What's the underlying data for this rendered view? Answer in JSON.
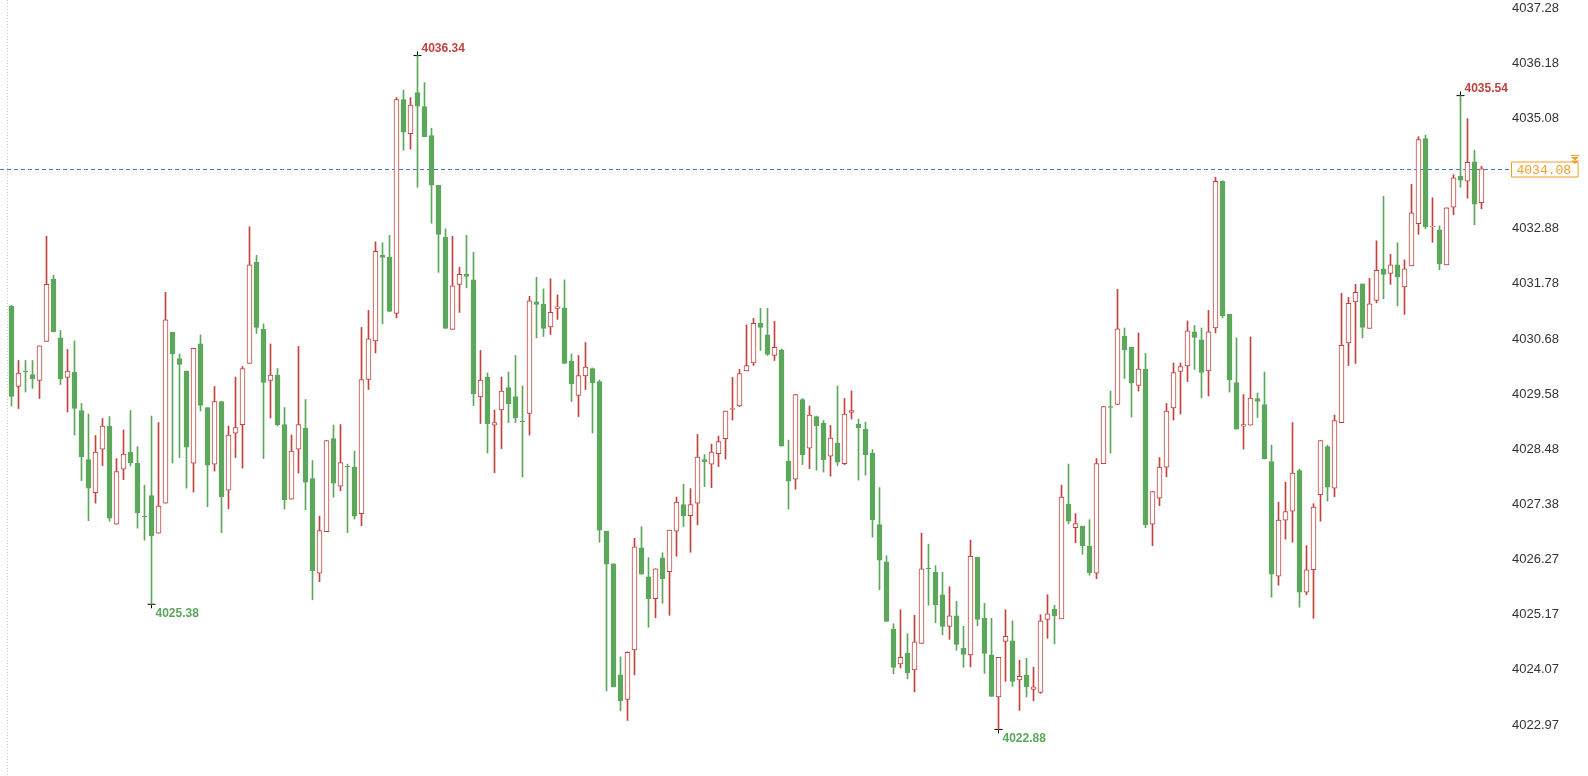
{
  "chart_data": {
    "type": "candlestick",
    "categories": [
      null,
      null,
      null,
      null,
      null,
      null,
      null,
      null,
      null,
      null,
      null,
      null,
      null,
      null,
      null,
      null,
      null,
      null,
      null,
      null,
      null,
      null,
      null,
      null,
      null,
      null,
      null,
      null,
      null,
      null,
      null,
      null,
      null,
      null,
      null,
      null,
      null,
      null,
      null,
      null,
      null,
      null,
      null,
      null,
      null,
      null,
      null,
      null,
      null,
      null,
      null,
      null,
      null,
      null,
      null,
      null,
      null,
      null,
      null,
      null,
      null,
      null,
      null,
      null,
      null,
      null,
      null,
      null,
      null,
      null,
      null,
      null,
      null,
      null,
      null,
      null,
      null,
      null,
      null,
      null,
      null,
      null,
      null,
      null,
      null,
      null,
      null,
      null,
      null,
      null,
      null,
      null,
      null,
      null,
      null,
      null,
      null,
      null,
      null,
      null,
      null,
      null,
      null,
      null,
      null,
      null,
      null,
      null,
      null,
      null,
      null,
      null,
      null,
      null,
      null,
      null,
      null,
      null,
      null,
      null,
      null,
      null,
      null,
      null,
      null,
      null,
      null,
      null,
      null,
      null,
      null,
      null,
      null,
      null,
      null,
      null,
      null,
      null,
      null,
      null,
      null,
      null,
      null,
      null,
      null,
      null,
      null,
      null,
      null,
      null,
      null,
      null,
      null,
      null,
      null,
      null,
      null,
      null,
      null,
      null,
      null,
      null,
      null,
      null,
      null,
      null,
      null,
      null,
      null,
      null,
      null,
      null,
      null,
      null,
      null,
      null,
      null,
      null,
      null,
      null,
      null,
      null,
      null,
      null,
      null,
      null,
      null,
      null,
      null,
      null,
      null,
      null,
      null,
      null,
      null,
      null,
      null,
      null,
      null,
      null,
      null,
      null,
      null,
      null,
      null,
      null,
      null,
      null,
      null,
      null,
      null
    ],
    "ohlc": [
      [
        4031.33,
        4031.35,
        4029.34,
        4029.53
      ],
      [
        4029.73,
        4030.25,
        4029.29,
        4030.0
      ],
      [
        4030.04,
        4030.25,
        4029.62,
        4030.04
      ],
      [
        4029.97,
        4030.25,
        4029.69,
        4029.88
      ],
      [
        4029.85,
        4030.54,
        4029.49,
        4030.54
      ],
      [
        4030.63,
        4032.73,
        4030.63,
        4031.77
      ],
      [
        4031.87,
        4031.95,
        4030.82,
        4030.82
      ],
      [
        4030.7,
        4030.85,
        4029.77,
        4029.88
      ],
      [
        4029.91,
        4030.47,
        4029.22,
        4030.04
      ],
      [
        4030.02,
        4030.64,
        4028.76,
        4029.29
      ],
      [
        4029.25,
        4029.39,
        4027.85,
        4028.33
      ],
      [
        4028.27,
        4029.18,
        4027.05,
        4027.7
      ],
      [
        4027.61,
        4028.75,
        4027.4,
        4028.42
      ],
      [
        4028.48,
        4029.09,
        4028.15,
        4028.94
      ],
      [
        4028.94,
        4029.13,
        4027.04,
        4027.1
      ],
      [
        4026.98,
        4028.29,
        4026.98,
        4028.03
      ],
      [
        4028.08,
        4028.86,
        4027.87,
        4028.38
      ],
      [
        4028.42,
        4029.25,
        4028.14,
        4028.21
      ],
      [
        4028.2,
        4028.53,
        4026.9,
        4027.21
      ],
      [
        4027.15,
        4027.76,
        4026.66,
        4027.15
      ],
      [
        4027.55,
        4029.14,
        4025.38,
        4026.75
      ],
      [
        4026.8,
        4029.01,
        4026.8,
        4027.34
      ],
      [
        4027.4,
        4031.61,
        4027.4,
        4031.06
      ],
      [
        4030.81,
        4030.81,
        4028.2,
        4030.38
      ],
      [
        4030.29,
        4030.38,
        4028.31,
        4030.17
      ],
      [
        4030.04,
        4030.04,
        4027.7,
        4028.52
      ],
      [
        4028.2,
        4030.49,
        4027.62,
        4030.49
      ],
      [
        4030.58,
        4030.76,
        4029.24,
        4029.35
      ],
      [
        4029.31,
        4029.31,
        4027.33,
        4028.16
      ],
      [
        4028.18,
        4029.73,
        4028.04,
        4029.43
      ],
      [
        4029.43,
        4029.43,
        4026.81,
        4027.53
      ],
      [
        4027.66,
        4028.94,
        4027.29,
        4028.76
      ],
      [
        4028.8,
        4029.92,
        4028.31,
        4028.91
      ],
      [
        4028.97,
        4030.13,
        4028.1,
        4030.09
      ],
      [
        4030.19,
        4032.92,
        4030.19,
        4032.16
      ],
      [
        4032.21,
        4032.35,
        4030.79,
        4030.91
      ],
      [
        4030.87,
        4030.98,
        4028.29,
        4029.81
      ],
      [
        4029.85,
        4030.58,
        4029.1,
        4029.96
      ],
      [
        4029.96,
        4030.09,
        4028.94,
        4028.97
      ],
      [
        4028.97,
        4029.31,
        4027.28,
        4027.47
      ],
      [
        4027.48,
        4028.76,
        4027.48,
        4028.44
      ],
      [
        4028.48,
        4030.53,
        4028.0,
        4028.97
      ],
      [
        4028.9,
        4029.47,
        4027.27,
        4027.82
      ],
      [
        4027.89,
        4028.25,
        4025.47,
        4026.05
      ],
      [
        4026.0,
        4027.14,
        4025.83,
        4026.85
      ],
      [
        4026.83,
        4028.65,
        4026.83,
        4028.65
      ],
      [
        4028.69,
        4028.96,
        4027.52,
        4027.8
      ],
      [
        4027.74,
        4028.97,
        4027.65,
        4028.21
      ],
      [
        4028.14,
        4028.18,
        4026.81,
        4028.14
      ],
      [
        4028.12,
        4028.44,
        4027.08,
        4027.14
      ],
      [
        4027.19,
        4030.91,
        4026.95,
        4029.87
      ],
      [
        4029.87,
        4031.25,
        4029.67,
        4030.68
      ],
      [
        4030.64,
        4032.62,
        4030.4,
        4032.43
      ],
      [
        4032.35,
        4032.6,
        4030.98,
        4032.31
      ],
      [
        4032.31,
        4032.75,
        4031.23,
        4031.23
      ],
      [
        4031.19,
        4035.5,
        4031.1,
        4035.46
      ],
      [
        4035.46,
        4035.65,
        4034.45,
        4034.81
      ],
      [
        4034.78,
        4035.5,
        4034.47,
        4035.35
      ],
      [
        4035.6,
        4036.34,
        4033.71,
        4035.33
      ],
      [
        4035.32,
        4035.8,
        4034.72,
        4034.72
      ],
      [
        4034.74,
        4034.89,
        4032.99,
        4033.75
      ],
      [
        4033.75,
        4033.75,
        4032.01,
        4032.77
      ],
      [
        4032.71,
        4032.88,
        4030.89,
        4030.89
      ],
      [
        4030.87,
        4032.73,
        4030.87,
        4031.74
      ],
      [
        4031.77,
        4032.11,
        4031.21,
        4031.97
      ],
      [
        4031.97,
        4032.75,
        4031.7,
        4031.93
      ],
      [
        4031.86,
        4032.41,
        4029.35,
        4029.58
      ],
      [
        4029.52,
        4030.45,
        4028.99,
        4029.86
      ],
      [
        4029.92,
        4030.0,
        4028.4,
        4028.99
      ],
      [
        4028.96,
        4029.26,
        4028.01,
        4029.01
      ],
      [
        4029.26,
        4029.92,
        4028.49,
        4029.64
      ],
      [
        4029.71,
        4030.02,
        4029.01,
        4029.38
      ],
      [
        4029.53,
        4030.35,
        4029.01,
        4029.1
      ],
      [
        4029.05,
        4029.74,
        4027.92,
        4029.05
      ],
      [
        4029.19,
        4031.53,
        4028.76,
        4031.44
      ],
      [
        4031.42,
        4031.91,
        4030.7,
        4031.37
      ],
      [
        4031.37,
        4031.68,
        4030.73,
        4030.89
      ],
      [
        4030.92,
        4031.88,
        4030.77,
        4031.21
      ],
      [
        4031.29,
        4031.56,
        4031.07,
        4031.32
      ],
      [
        4031.3,
        4031.86,
        4030.19,
        4030.19
      ],
      [
        4030.24,
        4030.38,
        4029.43,
        4029.78
      ],
      [
        4029.55,
        4030.35,
        4029.13,
        4029.95
      ],
      [
        4029.94,
        4030.61,
        4029.67,
        4030.12
      ],
      [
        4030.09,
        4030.1,
        4028.8,
        4029.8
      ],
      [
        4029.83,
        4029.86,
        4026.62,
        4026.86
      ],
      [
        4026.84,
        4026.84,
        4023.65,
        4026.18
      ],
      [
        4026.19,
        4026.19,
        4023.73,
        4023.73
      ],
      [
        4023.97,
        4024.33,
        4023.25,
        4023.45
      ],
      [
        4023.48,
        4024.43,
        4023.06,
        4024.42
      ],
      [
        4024.47,
        4026.7,
        4023.97,
        4026.53
      ],
      [
        4026.51,
        4026.93,
        4025.98,
        4025.98
      ],
      [
        4025.93,
        4026.31,
        4024.92,
        4025.49
      ],
      [
        4025.49,
        4026.09,
        4025.11,
        4026.09
      ],
      [
        4026.31,
        4026.41,
        4025.4,
        4025.89
      ],
      [
        4026.03,
        4026.86,
        4025.16,
        4026.86
      ],
      [
        4026.84,
        4027.52,
        4026.34,
        4027.42
      ],
      [
        4027.37,
        4027.78,
        4026.93,
        4027.15
      ],
      [
        4027.15,
        4027.69,
        4026.42,
        4027.37
      ],
      [
        4027.4,
        4028.77,
        4026.97,
        4028.32
      ],
      [
        4028.27,
        4028.37,
        4027.73,
        4028.23
      ],
      [
        4028.18,
        4028.58,
        4027.71,
        4028.42
      ],
      [
        4028.39,
        4028.74,
        4028.13,
        4028.63
      ],
      [
        4028.69,
        4029.24,
        4028.28,
        4029.24
      ],
      [
        4029.27,
        4029.91,
        4029.06,
        4029.29
      ],
      [
        4029.34,
        4030.07,
        4029.33,
        4029.99
      ],
      [
        4030.04,
        4030.96,
        4030.04,
        4030.15
      ],
      [
        4030.2,
        4031.09,
        4030.15,
        4030.99
      ],
      [
        4030.99,
        4031.29,
        4030.45,
        4030.91
      ],
      [
        4030.76,
        4031.29,
        4030.35,
        4030.37
      ],
      [
        4030.35,
        4031.03,
        4030.25,
        4030.51
      ],
      [
        4030.46,
        4030.48,
        4028.54,
        4028.54
      ],
      [
        4028.24,
        4028.66,
        4027.28,
        4027.84
      ],
      [
        4027.88,
        4029.57,
        4027.68,
        4029.57
      ],
      [
        4029.47,
        4029.49,
        4028.17,
        4028.37
      ],
      [
        4028.5,
        4029.34,
        4028.09,
        4029.16
      ],
      [
        4029.13,
        4029.14,
        4028.06,
        4028.95
      ],
      [
        4029.0,
        4029.05,
        4028.02,
        4028.27
      ],
      [
        4028.34,
        4028.95,
        4027.94,
        4028.7
      ],
      [
        4028.6,
        4029.74,
        4028.15,
        4028.22
      ],
      [
        4028.19,
        4029.49,
        4028.17,
        4029.18
      ],
      [
        4029.21,
        4029.64,
        4029.08,
        4029.25
      ],
      [
        4028.98,
        4029.08,
        4027.86,
        4028.91
      ],
      [
        4028.88,
        4029.02,
        4027.96,
        4028.37
      ],
      [
        4028.4,
        4028.47,
        4026.72,
        4027.07
      ],
      [
        4026.97,
        4027.71,
        4025.67,
        4026.26
      ],
      [
        4026.23,
        4026.35,
        4025.04,
        4025.04
      ],
      [
        4024.88,
        4024.99,
        4023.99,
        4024.12
      ],
      [
        4024.19,
        4025.27,
        4024.11,
        4024.32
      ],
      [
        4024.4,
        4024.79,
        4023.89,
        4024.01
      ],
      [
        4024.07,
        4025.16,
        4023.63,
        4024.63
      ],
      [
        4024.6,
        4026.8,
        4024.6,
        4026.09
      ],
      [
        4026.11,
        4026.58,
        4025.36,
        4026.11
      ],
      [
        4026.02,
        4026.15,
        4025.01,
        4025.37
      ],
      [
        4025.57,
        4026.02,
        4024.77,
        4024.94
      ],
      [
        4024.94,
        4025.73,
        4024.68,
        4025.15
      ],
      [
        4025.15,
        4025.44,
        4024.46,
        4024.58
      ],
      [
        4024.5,
        4024.94,
        4024.12,
        4024.38
      ],
      [
        4024.37,
        4026.66,
        4024.13,
        4026.34
      ],
      [
        4026.32,
        4026.32,
        4024.95,
        4025.08
      ],
      [
        4025.1,
        4025.4,
        4024.0,
        4024.4
      ],
      [
        4024.37,
        4025.1,
        4023.54,
        4023.54
      ],
      [
        4023.53,
        4024.32,
        4022.88,
        4024.32
      ],
      [
        4024.64,
        4025.27,
        4023.84,
        4024.74
      ],
      [
        4024.65,
        4025.05,
        4023.74,
        4023.84
      ],
      [
        4023.87,
        4024.26,
        4023.26,
        4023.94
      ],
      [
        4023.96,
        4024.3,
        4023.53,
        4023.73
      ],
      [
        4023.68,
        4024.12,
        4023.45,
        4023.73
      ],
      [
        4023.62,
        4025.17,
        4023.6,
        4025.05
      ],
      [
        4025.08,
        4025.57,
        4024.7,
        4025.19
      ],
      [
        4025.28,
        4025.36,
        4024.59,
        4025.15
      ],
      [
        4025.09,
        4027.76,
        4025.09,
        4027.52
      ],
      [
        4027.38,
        4028.18,
        4026.99,
        4027.04
      ],
      [
        4026.91,
        4027.19,
        4026.61,
        4026.99
      ],
      [
        4026.94,
        4026.94,
        4026.38,
        4026.55
      ],
      [
        4026.54,
        4027.07,
        4025.96,
        4026.01
      ],
      [
        4026.0,
        4028.29,
        4025.89,
        4028.19
      ],
      [
        4028.19,
        4029.33,
        4028.19,
        4029.33
      ],
      [
        4029.33,
        4029.64,
        4028.4,
        4029.31
      ],
      [
        4029.37,
        4031.67,
        4029.37,
        4030.88
      ],
      [
        4030.73,
        4030.9,
        4029.89,
        4030.46
      ],
      [
        4030.51,
        4030.51,
        4029.12,
        4029.8
      ],
      [
        4029.75,
        4030.8,
        4029.64,
        4030.08
      ],
      [
        4030.08,
        4030.39,
        4026.91,
        4026.97
      ],
      [
        4026.98,
        4027.63,
        4026.55,
        4027.63
      ],
      [
        4027.5,
        4028.31,
        4027.35,
        4028.12
      ],
      [
        4028.12,
        4029.39,
        4027.93,
        4029.24
      ],
      [
        4029.3,
        4030.2,
        4029.06,
        4030.01
      ],
      [
        4030.03,
        4030.2,
        4029.18,
        4030.13
      ],
      [
        4030.14,
        4031.04,
        4029.83,
        4030.84
      ],
      [
        4030.82,
        4030.95,
        4030.07,
        4030.71
      ],
      [
        4030.66,
        4030.9,
        4029.5,
        4030.01
      ],
      [
        4030.04,
        4031.25,
        4029.54,
        4030.82
      ],
      [
        4030.9,
        4033.91,
        4030.8,
        4033.83
      ],
      [
        4033.83,
        4033.84,
        4031.1,
        4031.14
      ],
      [
        4031.17,
        4031.17,
        4029.62,
        4029.86
      ],
      [
        4029.81,
        4030.7,
        4028.88,
        4028.88
      ],
      [
        4028.94,
        4029.57,
        4028.48,
        4028.97
      ],
      [
        4028.96,
        4030.72,
        4028.96,
        4029.5
      ],
      [
        4029.49,
        4029.6,
        4029.11,
        4029.43
      ],
      [
        4029.37,
        4030.02,
        4028.28,
        4028.29
      ],
      [
        4028.23,
        4028.56,
        4025.52,
        4025.98
      ],
      [
        4025.94,
        4027.42,
        4025.76,
        4027.06
      ],
      [
        4027.06,
        4027.82,
        4026.68,
        4027.23
      ],
      [
        4027.24,
        4029.01,
        4026.62,
        4028.0
      ],
      [
        4028.05,
        4028.08,
        4025.32,
        4025.62
      ],
      [
        4025.62,
        4026.55,
        4025.57,
        4026.07
      ],
      [
        4026.07,
        4027.39,
        4025.1,
        4027.32
      ],
      [
        4027.57,
        4028.65,
        4027.04,
        4028.65
      ],
      [
        4028.53,
        4028.56,
        4027.44,
        4027.72
      ],
      [
        4027.7,
        4029.16,
        4027.53,
        4029.05
      ],
      [
        4029.01,
        4031.59,
        4029.01,
        4030.55
      ],
      [
        4030.6,
        4031.51,
        4030.15,
        4031.39
      ],
      [
        4031.42,
        4031.77,
        4030.19,
        4031.61
      ],
      [
        4031.78,
        4031.78,
        4030.7,
        4030.91
      ],
      [
        4030.89,
        4031.89,
        4030.89,
        4031.38
      ],
      [
        4031.45,
        4032.64,
        4031.4,
        4032.05
      ],
      [
        4032.08,
        4033.53,
        4031.48,
        4031.97
      ],
      [
        4031.99,
        4032.37,
        4031.77,
        4032.16
      ],
      [
        4032.16,
        4032.6,
        4031.34,
        4031.92
      ],
      [
        4031.72,
        4032.26,
        4031.17,
        4032.08
      ],
      [
        4032.14,
        4033.77,
        4032.14,
        4033.2
      ],
      [
        4032.98,
        4034.72,
        4032.77,
        4034.66
      ],
      [
        4034.68,
        4034.75,
        4032.88,
        4032.92
      ],
      [
        4032.92,
        4033.5,
        4032.61,
        4032.93
      ],
      [
        4032.86,
        4032.94,
        4032.06,
        4032.18
      ],
      [
        4032.16,
        4033.3,
        4032.16,
        4033.3
      ],
      [
        4033.31,
        4033.96,
        4033.16,
        4033.9
      ],
      [
        4033.93,
        4035.54,
        4033.71,
        4033.85
      ],
      [
        4033.83,
        4035.08,
        4033.49,
        4034.21
      ],
      [
        4034.22,
        4034.45,
        4032.96,
        4033.37
      ],
      [
        4033.4,
        4034.13,
        4033.28,
        4034.08
      ]
    ],
    "colors": [
      "#5ca75c",
      "#c0433f",
      "#5ca75c",
      "#5ca75c",
      "#c0433f",
      "#c0433f",
      "#5ca75c",
      "#5ca75c",
      "#c0433f",
      "#5ca75c",
      "#5ca75c",
      "#5ca75c",
      "#c0433f",
      "#c0433f",
      "#5ca75c",
      "#c0433f",
      "#c0433f",
      "#5ca75c",
      "#5ca75c",
      "#5ca75c",
      "#5ca75c",
      "#c0433f",
      "#c0433f",
      "#5ca75c",
      "#5ca75c",
      "#5ca75c",
      "#c0433f",
      "#5ca75c",
      "#5ca75c",
      "#c0433f",
      "#5ca75c",
      "#c0433f",
      "#c0433f",
      "#c0433f",
      "#c0433f",
      "#5ca75c",
      "#5ca75c",
      "#c0433f",
      "#5ca75c",
      "#5ca75c",
      "#c0433f",
      "#c0433f",
      "#5ca75c",
      "#5ca75c",
      "#c0433f",
      "#c0433f",
      "#5ca75c",
      "#c0433f",
      "#5ca75c",
      "#5ca75c",
      "#c0433f",
      "#c0433f",
      "#c0433f",
      "#5ca75c",
      "#5ca75c",
      "#c0433f",
      "#5ca75c",
      "#c0433f",
      "#5ca75c",
      "#5ca75c",
      "#5ca75c",
      "#5ca75c",
      "#5ca75c",
      "#c0433f",
      "#c0433f",
      "#5ca75c",
      "#5ca75c",
      "#c0433f",
      "#5ca75c",
      "#c0433f",
      "#c0433f",
      "#5ca75c",
      "#5ca75c",
      "#5ca75c",
      "#c0433f",
      "#5ca75c",
      "#5ca75c",
      "#c0433f",
      "#c0433f",
      "#5ca75c",
      "#5ca75c",
      "#c0433f",
      "#c0433f",
      "#5ca75c",
      "#5ca75c",
      "#5ca75c",
      "#5ca75c",
      "#5ca75c",
      "#c0433f",
      "#c0433f",
      "#5ca75c",
      "#5ca75c",
      "#c0433f",
      "#5ca75c",
      "#c0433f",
      "#c0433f",
      "#5ca75c",
      "#c0433f",
      "#c0433f",
      "#5ca75c",
      "#c0433f",
      "#c0433f",
      "#c0433f",
      "#c0433f",
      "#c0433f",
      "#c0433f",
      "#c0433f",
      "#5ca75c",
      "#5ca75c",
      "#c0433f",
      "#5ca75c",
      "#5ca75c",
      "#c0433f",
      "#5ca75c",
      "#c0433f",
      "#5ca75c",
      "#5ca75c",
      "#c0433f",
      "#5ca75c",
      "#c0433f",
      "#c0433f",
      "#5ca75c",
      "#5ca75c",
      "#5ca75c",
      "#5ca75c",
      "#5ca75c",
      "#5ca75c",
      "#c0433f",
      "#5ca75c",
      "#c0433f",
      "#c0433f",
      "#5ca75c",
      "#5ca75c",
      "#5ca75c",
      "#c0433f",
      "#5ca75c",
      "#5ca75c",
      "#c0433f",
      "#5ca75c",
      "#5ca75c",
      "#5ca75c",
      "#c0433f",
      "#c0433f",
      "#5ca75c",
      "#c0433f",
      "#5ca75c",
      "#c0433f",
      "#c0433f",
      "#c0433f",
      "#5ca75c",
      "#c0433f",
      "#5ca75c",
      "#c0433f",
      "#5ca75c",
      "#5ca75c",
      "#c0433f",
      "#c0433f",
      "#5ca75c",
      "#c0433f",
      "#5ca75c",
      "#5ca75c",
      "#c0433f",
      "#5ca75c",
      "#c0433f",
      "#c0433f",
      "#c0433f",
      "#c0433f",
      "#c0433f",
      "#c0433f",
      "#5ca75c",
      "#5ca75c",
      "#c0433f",
      "#c0433f",
      "#5ca75c",
      "#5ca75c",
      "#5ca75c",
      "#c0433f",
      "#c0433f",
      "#5ca75c",
      "#5ca75c",
      "#5ca75c",
      "#c0433f",
      "#c0433f",
      "#c0433f",
      "#5ca75c",
      "#c0433f",
      "#c0433f",
      "#c0433f",
      "#5ca75c",
      "#c0433f",
      "#c0433f",
      "#c0433f",
      "#c0433f",
      "#5ca75c",
      "#c0433f",
      "#c0433f",
      "#5ca75c",
      "#c0433f",
      "#5ca75c",
      "#c0433f",
      "#c0433f",
      "#c0433f",
      "#5ca75c",
      "#c0433f",
      "#5ca75c",
      "#c0433f",
      "#c0433f",
      "#5ca75c",
      "#c0433f",
      "#5ca75c",
      "#c0433f"
    ],
    "series": [
      {
        "type": "scatter",
        "color": "#000000",
        "marker": "cross",
        "values": [
          null,
          null,
          null,
          null,
          null,
          null,
          null,
          null,
          null,
          null,
          null,
          null,
          null,
          null,
          null,
          null,
          null,
          null,
          null,
          null,
          4025.38,
          null,
          null,
          null,
          null,
          null,
          null,
          null,
          null,
          null,
          null,
          null,
          null,
          null,
          null,
          null,
          null,
          null,
          null,
          null,
          null,
          null,
          null,
          null,
          null,
          null,
          null,
          null,
          null,
          null,
          null,
          null,
          null,
          null,
          null,
          null,
          null,
          null,
          4036.34,
          null,
          null,
          null,
          null,
          null,
          null,
          null,
          null,
          null,
          null,
          null,
          null,
          null,
          null,
          null,
          null,
          null,
          null,
          null,
          null,
          null,
          null,
          null,
          null,
          null,
          null,
          null,
          null,
          null,
          null,
          null,
          null,
          null,
          null,
          null,
          null,
          null,
          null,
          null,
          null,
          null,
          null,
          null,
          null,
          null,
          null,
          null,
          null,
          null,
          null,
          null,
          null,
          null,
          null,
          null,
          null,
          null,
          null,
          null,
          null,
          null,
          null,
          null,
          null,
          null,
          null,
          null,
          null,
          null,
          null,
          null,
          null,
          null,
          null,
          null,
          null,
          null,
          null,
          null,
          null,
          null,
          null,
          4022.88,
          null,
          null,
          null,
          null,
          null,
          null,
          null,
          null,
          null,
          null,
          null,
          null,
          null,
          null,
          null,
          null,
          null,
          null,
          null,
          null,
          null,
          null,
          null,
          null,
          null,
          null,
          null,
          null,
          null,
          null,
          null,
          null,
          null,
          null,
          null,
          null,
          null,
          null,
          null,
          null,
          null,
          null,
          null,
          null,
          null,
          null,
          null,
          null,
          null,
          null,
          null,
          null,
          null,
          null,
          null,
          null,
          null,
          null,
          null,
          null,
          null,
          null,
          null,
          null,
          null,
          4035.54,
          null,
          null,
          null
        ],
        "value_labels": [
          null,
          null,
          null,
          null,
          null,
          null,
          null,
          null,
          null,
          null,
          null,
          null,
          null,
          null,
          null,
          null,
          null,
          null,
          null,
          null,
          "4025.38",
          null,
          null,
          null,
          null,
          null,
          null,
          null,
          null,
          null,
          null,
          null,
          null,
          null,
          null,
          null,
          null,
          null,
          null,
          null,
          null,
          null,
          null,
          null,
          null,
          null,
          null,
          null,
          null,
          null,
          null,
          null,
          null,
          null,
          null,
          null,
          null,
          null,
          "4036.34",
          null,
          null,
          null,
          null,
          null,
          null,
          null,
          null,
          null,
          null,
          null,
          null,
          null,
          null,
          null,
          null,
          null,
          null,
          null,
          null,
          null,
          null,
          null,
          null,
          null,
          null,
          null,
          null,
          null,
          null,
          null,
          null,
          null,
          null,
          null,
          null,
          null,
          null,
          null,
          null,
          null,
          null,
          null,
          null,
          null,
          null,
          null,
          null,
          null,
          null,
          null,
          null,
          null,
          null,
          null,
          null,
          null,
          null,
          null,
          null,
          null,
          null,
          null,
          null,
          null,
          null,
          null,
          null,
          null,
          null,
          null,
          null,
          null,
          null,
          null,
          null,
          null,
          null,
          null,
          null,
          null,
          null,
          "4022.88",
          null,
          null,
          null,
          null,
          null,
          null,
          null,
          null,
          null,
          null,
          null,
          null,
          null,
          null,
          null,
          null,
          null,
          null,
          null,
          null,
          null,
          null,
          null,
          null,
          null,
          null,
          null,
          null,
          null,
          null,
          null,
          null,
          null,
          null,
          null,
          null,
          null,
          null,
          null,
          null,
          null,
          null,
          null,
          null,
          null,
          null,
          null,
          null,
          null,
          null,
          null,
          null,
          null,
          null,
          null,
          null,
          null,
          null,
          null,
          null,
          null,
          null,
          null,
          null,
          null,
          "4035.54",
          null,
          null,
          null
        ]
      }
    ],
    "ylim": [
      4021.95,
      4037.45
    ],
    "yticks": [
      4037.28,
      4036.18,
      4035.08,
      4032.88,
      4031.78,
      4030.68,
      4029.58,
      4028.48,
      4027.38,
      4026.27,
      4025.17,
      4024.07,
      4022.97
    ],
    "tick_labels": "y",
    "ref_lines": [
      {
        "axis": "y",
        "value": 4034.08,
        "label": "4034.08",
        "color": "#3d7cc9",
        "line_style": "dashed"
      }
    ]
  }
}
